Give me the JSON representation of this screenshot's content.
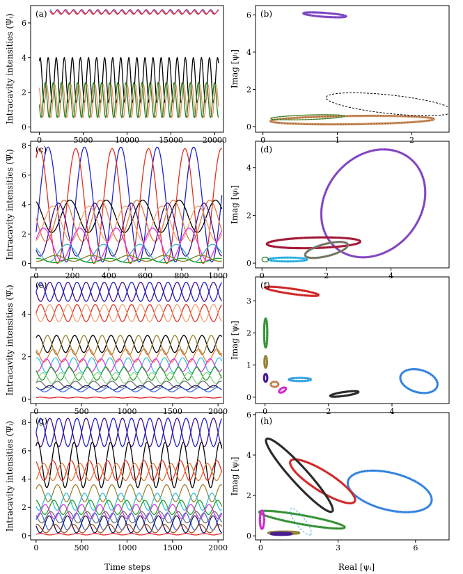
{
  "figure": {
    "xlabel_time": "Time steps",
    "xlabel_real": "Real [ψᵢ]",
    "ylabel_left": "Intracavity intensities (Ψᵢ)",
    "ylabel_right": "Imag [ψᵢ]"
  },
  "chart_data": [
    {
      "panel": "(a)",
      "type": "line",
      "xlabel": "",
      "ylabel": "Intracavity intensities (Ψᵢ)",
      "xlim": [
        -1000,
        21000
      ],
      "ylim": [
        -0.3,
        7.0
      ],
      "xticks": [
        0,
        5000,
        10000,
        15000,
        20000
      ],
      "yticks": [
        0,
        2,
        4,
        6
      ],
      "series": [
        {
          "name": "purple",
          "color": "#8040c0",
          "mean": 6.65,
          "amp": 0.12,
          "period": 920,
          "phase": 0.0,
          "start": 1200
        },
        {
          "name": "red",
          "color": "#e03030",
          "mean": 6.6,
          "amp": 0.1,
          "period": 920,
          "phase": 0.5,
          "start": 1200
        },
        {
          "name": "black",
          "color": "#000000",
          "mean": 2.7,
          "amp": 1.3,
          "period": 920,
          "phase": 1.0,
          "start": 0
        },
        {
          "name": "orange",
          "color": "#e8905a",
          "mean": 1.5,
          "amp": 0.95,
          "period": 920,
          "phase": 2.2,
          "start": 0
        },
        {
          "name": "green",
          "color": "#208020",
          "mean": 1.55,
          "amp": 1.0,
          "period": 920,
          "phase": 3.4,
          "start": 0
        }
      ]
    },
    {
      "panel": "(b)",
      "type": "line",
      "xlabel": "",
      "ylabel": "Imag [ψᵢ]",
      "xlim": [
        -0.1,
        2.5
      ],
      "ylim": [
        -0.3,
        6.5
      ],
      "xticks": [
        0,
        1,
        2
      ],
      "yticks": [
        0,
        2,
        4,
        6
      ],
      "loops": [
        {
          "name": "purple",
          "color": "#8a50d0",
          "style": "thick",
          "cx": 0.83,
          "cy": 6.0,
          "rx": 0.3,
          "ry": 0.1,
          "tilt": -18
        },
        {
          "name": "orange",
          "color": "#d09060",
          "style": "thick",
          "cx": 1.2,
          "cy": 0.35,
          "rx": 1.1,
          "ry": 0.22,
          "tilt": 3
        },
        {
          "name": "green",
          "color": "#60a040",
          "style": "thin",
          "cx": 0.6,
          "cy": 0.5,
          "rx": 0.5,
          "ry": 0.12,
          "tilt": 8
        },
        {
          "name": "black",
          "color": "#000000",
          "style": "dashed",
          "cx": 1.7,
          "cy": 1.2,
          "rx": 0.95,
          "ry": 0.45,
          "tilt": -30
        }
      ]
    },
    {
      "panel": "(c)",
      "type": "line",
      "xlabel": "",
      "ylabel": "Intracavity intensities (Ψᵢ)",
      "xlim": [
        -30,
        1030
      ],
      "ylim": [
        -0.3,
        8.3
      ],
      "xticks": [
        0,
        200,
        400,
        600,
        800,
        1000
      ],
      "yticks": [
        0,
        2,
        4,
        6,
        8
      ],
      "series": [
        {
          "name": "blue",
          "color": "#2020d0",
          "mean": 4.0,
          "amp": 3.9,
          "period": 200,
          "phase": -0.5,
          "start": 0
        },
        {
          "name": "red",
          "color": "#e03020",
          "mean": 3.9,
          "amp": 3.9,
          "period": 200,
          "phase": 1.0,
          "start": 0
        },
        {
          "name": "black",
          "color": "#000000",
          "mean": 3.2,
          "amp": 1.1,
          "period": 200,
          "phase": 2.0,
          "start": 0
        },
        {
          "name": "orange",
          "color": "#e07838",
          "mean": 2.9,
          "amp": 1.4,
          "period": 200,
          "phase": 3.0,
          "start": 0
        },
        {
          "name": "indigo",
          "color": "#40108a",
          "mean": 2.3,
          "amp": 1.8,
          "period": 200,
          "phase": 4.0,
          "start": 0
        },
        {
          "name": "peach",
          "color": "#f0a070",
          "mean": 2.7,
          "amp": 1.2,
          "period": 200,
          "phase": 5.0,
          "start": 0
        },
        {
          "name": "magenta",
          "color": "#e030e0",
          "mean": 1.3,
          "amp": 1.1,
          "period": 200,
          "phase": 0.3,
          "start": 0
        },
        {
          "name": "cyan",
          "color": "#30b0e0",
          "mean": 0.7,
          "amp": 0.6,
          "period": 200,
          "phase": 2.5,
          "start": 0
        },
        {
          "name": "olive",
          "color": "#808020",
          "mean": 0.35,
          "amp": 0.2,
          "period": 200,
          "phase": 4.5,
          "start": 0
        },
        {
          "name": "green",
          "color": "#20a020",
          "mean": 0.2,
          "amp": 0.15,
          "period": 200,
          "phase": 1.5,
          "start": 0
        }
      ]
    },
    {
      "panel": "(d)",
      "type": "line",
      "xlabel": "",
      "ylabel": "Imag [ψᵢ]",
      "xlim": [
        -0.2,
        5.8
      ],
      "ylim": [
        -0.2,
        5.1
      ],
      "xticks": [
        0,
        2,
        4
      ],
      "yticks": [
        0,
        2,
        4
      ],
      "loops": [
        {
          "name": "purple",
          "color": "#9050d0",
          "style": "thick",
          "cx": 3.45,
          "cy": 2.5,
          "rx": 1.55,
          "ry": 2.3,
          "tilt": -15
        },
        {
          "name": "crimson",
          "color": "#b02040",
          "style": "thick",
          "cx": 1.6,
          "cy": 0.85,
          "rx": 1.45,
          "ry": 0.22,
          "tilt": 2
        },
        {
          "name": "gray",
          "color": "#808070",
          "style": "thick",
          "cx": 2.0,
          "cy": 0.55,
          "rx": 0.7,
          "ry": 0.25,
          "tilt": 20
        },
        {
          "name": "cyan",
          "color": "#40c0f0",
          "style": "thick",
          "cx": 0.8,
          "cy": 0.15,
          "rx": 0.6,
          "ry": 0.08,
          "tilt": 0
        },
        {
          "name": "green",
          "color": "#50a050",
          "style": "thin",
          "cx": 0.1,
          "cy": 0.15,
          "rx": 0.1,
          "ry": 0.1,
          "tilt": 0
        }
      ]
    },
    {
      "panel": "(e)",
      "type": "line",
      "xlabel": "",
      "ylabel": "Intracavity intensities (Ψᵢ)",
      "xlim": [
        -60,
        2060
      ],
      "ylim": [
        -0.2,
        5.75
      ],
      "xticks": [
        0,
        500,
        1000,
        1500,
        2000
      ],
      "yticks": [
        0,
        2,
        4
      ],
      "series": [
        {
          "name": "blue",
          "color": "#2020d0",
          "mean": 5.05,
          "amp": 0.45,
          "period": 200,
          "phase": 0.0,
          "start": 0
        },
        {
          "name": "indigo",
          "color": "#40108a",
          "mean": 5.05,
          "amp": 0.45,
          "period": 200,
          "phase": 3.14,
          "start": 0
        },
        {
          "name": "red",
          "color": "#e03020",
          "mean": 4.05,
          "amp": 0.4,
          "period": 200,
          "phase": 0.0,
          "start": 0
        },
        {
          "name": "peach",
          "color": "#f0a070",
          "mean": 4.05,
          "amp": 0.4,
          "period": 200,
          "phase": 3.14,
          "start": 0
        },
        {
          "name": "black",
          "color": "#000000",
          "mean": 2.6,
          "amp": 0.4,
          "period": 200,
          "phase": 0.8,
          "start": 0
        },
        {
          "name": "olive",
          "color": "#a08030",
          "mean": 2.55,
          "amp": 0.45,
          "period": 200,
          "phase": 3.9,
          "start": 0
        },
        {
          "name": "orange",
          "color": "#e07838",
          "mean": 2.05,
          "amp": 0.3,
          "period": 200,
          "phase": 2.0,
          "start": 0
        },
        {
          "name": "cyan",
          "color": "#30c0e0",
          "mean": 1.6,
          "amp": 0.35,
          "period": 200,
          "phase": 1.2,
          "start": 0
        },
        {
          "name": "magenta",
          "color": "#e030e0",
          "mean": 1.6,
          "amp": 0.3,
          "period": 200,
          "phase": 4.3,
          "start": 0
        },
        {
          "name": "green",
          "color": "#20a020",
          "mean": 1.2,
          "amp": 0.3,
          "period": 200,
          "phase": 2.6,
          "start": 0
        },
        {
          "name": "lightgreen",
          "color": "#90d090",
          "mean": 1.0,
          "amp": 0.25,
          "period": 200,
          "phase": 5.5,
          "start": 0
        },
        {
          "name": "gray",
          "color": "#707070",
          "mean": 0.7,
          "amp": 0.15,
          "period": 200,
          "phase": 0.5,
          "start": 0
        },
        {
          "name": "darkblue",
          "color": "#101060",
          "mean": 0.55,
          "amp": 0.1,
          "period": 200,
          "phase": 3.0,
          "start": 0
        },
        {
          "name": "lightblue",
          "color": "#4070e0",
          "mean": 0.45,
          "amp": 0.1,
          "period": 200,
          "phase": 1.8,
          "start": 0
        },
        {
          "name": "darkred",
          "color": "#e02020",
          "mean": 0.08,
          "amp": 0.02,
          "period": 200,
          "phase": 0.0,
          "start": 0
        }
      ]
    },
    {
      "panel": "(f)",
      "type": "line",
      "xlabel": "",
      "ylabel": "Imag [ψᵢ]",
      "xlim": [
        -0.3,
        5.8
      ],
      "ylim": [
        -0.2,
        3.75
      ],
      "xticks": [
        0,
        2,
        4
      ],
      "yticks": [
        0,
        1,
        2,
        3
      ],
      "loops": [
        {
          "name": "red",
          "color": "#e03030",
          "style": "thick",
          "cx": 0.85,
          "cy": 3.3,
          "rx": 0.85,
          "ry": 0.08,
          "tilt": -8
        },
        {
          "name": "green",
          "color": "#40a040",
          "style": "thick",
          "cx": 0.02,
          "cy": 2.0,
          "rx": 0.05,
          "ry": 0.45,
          "tilt": 0
        },
        {
          "name": "olive",
          "color": "#a09040",
          "style": "thick",
          "cx": 0.02,
          "cy": 1.1,
          "rx": 0.04,
          "ry": 0.18,
          "tilt": 0
        },
        {
          "name": "indigo",
          "color": "#5020a0",
          "style": "thick",
          "cx": 0.02,
          "cy": 0.6,
          "rx": 0.05,
          "ry": 0.12,
          "tilt": 0
        },
        {
          "name": "peach",
          "color": "#d09060",
          "style": "thick",
          "cx": 0.3,
          "cy": 0.4,
          "rx": 0.12,
          "ry": 0.08,
          "tilt": 0
        },
        {
          "name": "magenta",
          "color": "#e030e0",
          "style": "thick",
          "cx": 0.55,
          "cy": 0.22,
          "rx": 0.12,
          "ry": 0.06,
          "tilt": 30
        },
        {
          "name": "cyan",
          "color": "#40b0f0",
          "style": "thick",
          "cx": 1.1,
          "cy": 0.55,
          "rx": 0.35,
          "ry": 0.05,
          "tilt": 0
        },
        {
          "name": "black",
          "color": "#303030",
          "style": "thick",
          "cx": 2.5,
          "cy": 0.1,
          "rx": 0.45,
          "ry": 0.06,
          "tilt": 8
        },
        {
          "name": "blue",
          "color": "#4090f0",
          "style": "thick",
          "cx": 4.85,
          "cy": 0.5,
          "rx": 0.6,
          "ry": 0.35,
          "tilt": -15
        }
      ]
    },
    {
      "panel": "(g)",
      "type": "line",
      "xlabel": "Time steps",
      "ylabel": "Intracavity intensities (Ψᵢ)",
      "xlim": [
        -60,
        2060
      ],
      "ylim": [
        -0.3,
        8.7
      ],
      "xticks": [
        0,
        500,
        1000,
        1500,
        2000
      ],
      "yticks": [
        0,
        2,
        4,
        6,
        8
      ],
      "series": [
        {
          "name": "blue",
          "color": "#2020d0",
          "mean": 7.3,
          "amp": 1.0,
          "period": 200,
          "phase": 0.0,
          "start": 0
        },
        {
          "name": "indigo",
          "color": "#40108a",
          "mean": 7.3,
          "amp": 1.0,
          "period": 200,
          "phase": 3.14,
          "start": 0
        },
        {
          "name": "black",
          "color": "#000000",
          "mean": 5.0,
          "amp": 1.6,
          "period": 200,
          "phase": 1.0,
          "start": 0
        },
        {
          "name": "red",
          "color": "#e03020",
          "mean": 4.6,
          "amp": 0.7,
          "period": 200,
          "phase": 2.0,
          "start": 0
        },
        {
          "name": "orange",
          "color": "#e07838",
          "mean": 4.5,
          "amp": 0.6,
          "period": 200,
          "phase": 5.2,
          "start": 0
        },
        {
          "name": "olive",
          "color": "#a08030",
          "mean": 3.0,
          "amp": 0.6,
          "period": 200,
          "phase": 0.5,
          "start": 0
        },
        {
          "name": "cyan",
          "color": "#30c0e0",
          "mean": 2.4,
          "amp": 0.6,
          "period": 200,
          "phase": 3.7,
          "start": 0
        },
        {
          "name": "green",
          "color": "#20a020",
          "mean": 2.0,
          "amp": 0.5,
          "period": 200,
          "phase": 1.7,
          "start": 0
        },
        {
          "name": "magenta",
          "color": "#e030e0",
          "mean": 1.7,
          "amp": 0.5,
          "period": 200,
          "phase": 4.7,
          "start": 0
        },
        {
          "name": "gray",
          "color": "#707070",
          "mean": 1.3,
          "amp": 0.4,
          "period": 200,
          "phase": 2.8,
          "start": 0
        },
        {
          "name": "lightblue",
          "color": "#4070e0",
          "mean": 1.0,
          "amp": 0.6,
          "period": 200,
          "phase": 0.2,
          "start": 0
        },
        {
          "name": "darkblue",
          "color": "#101060",
          "mean": 0.8,
          "amp": 0.6,
          "period": 200,
          "phase": 3.3,
          "start": 0
        },
        {
          "name": "brown",
          "color": "#a05020",
          "mean": 0.5,
          "amp": 0.3,
          "period": 200,
          "phase": 1.3,
          "start": 0
        },
        {
          "name": "darkred",
          "color": "#e02020",
          "mean": 0.1,
          "amp": 0.05,
          "period": 200,
          "phase": 0.0,
          "start": 0
        }
      ]
    },
    {
      "panel": "(h)",
      "type": "line",
      "xlabel": "Real [ψᵢ]",
      "ylabel": "Imag [ψᵢ]",
      "xlim": [
        -0.2,
        7.3
      ],
      "ylim": [
        -0.2,
        6.1
      ],
      "xticks": [
        0,
        3,
        6
      ],
      "yticks": [
        0,
        2,
        4,
        6
      ],
      "loops": [
        {
          "name": "blue",
          "color": "#4090f0",
          "style": "thick",
          "cx": 5.0,
          "cy": 2.2,
          "rx": 1.7,
          "ry": 0.9,
          "tilt": -20
        },
        {
          "name": "red",
          "color": "#e03030",
          "style": "thick",
          "cx": 2.4,
          "cy": 2.7,
          "rx": 1.6,
          "ry": 0.45,
          "tilt": -40
        },
        {
          "name": "black",
          "color": "#303030",
          "style": "thick",
          "cx": 1.5,
          "cy": 3.0,
          "rx": 2.2,
          "ry": 0.35,
          "tilt": -55
        },
        {
          "name": "green",
          "color": "#40a040",
          "style": "thick",
          "cx": 1.6,
          "cy": 0.8,
          "rx": 1.7,
          "ry": 0.22,
          "tilt": -13
        },
        {
          "name": "cyan",
          "color": "#40b0f0",
          "style": "dashed",
          "cx": 1.55,
          "cy": 0.7,
          "rx": 0.75,
          "ry": 0.2,
          "tilt": -60
        },
        {
          "name": "magenta",
          "color": "#e030e0",
          "style": "thick",
          "cx": 0.05,
          "cy": 0.8,
          "rx": 0.08,
          "ry": 0.45,
          "tilt": 0
        },
        {
          "name": "olive",
          "color": "#a09040",
          "style": "thick",
          "cx": 0.9,
          "cy": 0.15,
          "rx": 0.6,
          "ry": 0.06,
          "tilt": 0
        },
        {
          "name": "indigo",
          "color": "#5020a0",
          "style": "thick",
          "cx": 0.8,
          "cy": 0.1,
          "rx": 0.4,
          "ry": 0.05,
          "tilt": 0
        }
      ]
    }
  ]
}
